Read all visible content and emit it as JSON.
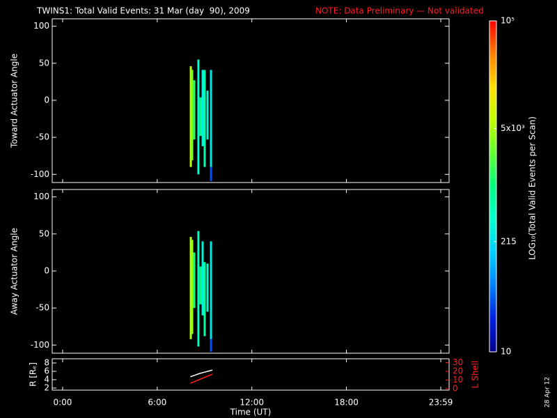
{
  "header": {
    "title": "TWINS1: Total Valid Events: 31 Mar (day  90), 2009",
    "note": "NOTE: Data Preliminary — Not validated",
    "stamp": "28 Apr 12"
  },
  "time_axis": {
    "label": "Time (UT)",
    "xlim": [
      -0.66,
      24.51
    ],
    "xticks": [
      {
        "value": 0,
        "label": "0:00"
      },
      {
        "value": 6,
        "label": "6:00"
      },
      {
        "value": 12,
        "label": "12:00"
      },
      {
        "value": 18,
        "label": "18:00"
      },
      {
        "value": 23.983,
        "label": "23:59"
      }
    ]
  },
  "colorbar": {
    "label": "LOG₁₀(Total Valid Events per Scan)",
    "log": true,
    "lim": [
      10,
      100000
    ],
    "ticks": [
      10,
      215,
      {
        "value": 5000,
        "label": "5x10³"
      },
      {
        "value": 100000,
        "label": "10⁵"
      }
    ],
    "colormap": [
      "#00008c",
      "#0020e0",
      "#0080ff",
      "#00d0ff",
      "#00ffd0",
      "#00ff80",
      "#60ff30",
      "#c0ff00",
      "#ffe000",
      "#ff8000",
      "#ff0000"
    ]
  },
  "chart_data": [
    {
      "type": "heatmap",
      "ylabel": "Toward Actuator Angle",
      "ylim": [
        -111,
        110
      ],
      "yticks": [
        -100,
        -50,
        0,
        50,
        100
      ],
      "streaks": [
        {
          "x": 8.13,
          "y": [
            -90,
            46
          ],
          "value": 6000
        },
        {
          "x": 8.22,
          "y": [
            -81,
            41
          ],
          "value": 3000
        },
        {
          "x": 8.35,
          "y": [
            -53,
            27
          ],
          "value": 1500
        },
        {
          "x": 8.61,
          "y": [
            -100,
            55
          ],
          "value": 400
        },
        {
          "x": 8.75,
          "y": [
            -48,
            4
          ],
          "value": 800
        },
        {
          "x": 8.88,
          "y": [
            -62,
            41
          ],
          "value": 300
        },
        {
          "x": 9.01,
          "y": [
            -90,
            41
          ],
          "value": 600
        },
        {
          "x": 9.19,
          "y": [
            -53,
            13
          ],
          "value": 350
        },
        {
          "x": 9.41,
          "y": [
            -90,
            41
          ],
          "value": 250
        },
        {
          "x": 9.41,
          "y": [
            -109,
            -90
          ],
          "value": 40
        }
      ]
    },
    {
      "type": "heatmap",
      "ylabel": "Away Actuator Angle",
      "ylim": [
        -111,
        110
      ],
      "yticks": [
        -100,
        -50,
        0,
        50,
        100
      ],
      "streaks": [
        {
          "x": 8.13,
          "y": [
            -92,
            46
          ],
          "value": 5500
        },
        {
          "x": 8.22,
          "y": [
            -85,
            42
          ],
          "value": 4000
        },
        {
          "x": 8.35,
          "y": [
            -50,
            25
          ],
          "value": 1200
        },
        {
          "x": 8.61,
          "y": [
            -102,
            54
          ],
          "value": 450
        },
        {
          "x": 8.75,
          "y": [
            -45,
            6
          ],
          "value": 900
        },
        {
          "x": 8.88,
          "y": [
            -60,
            40
          ],
          "value": 320
        },
        {
          "x": 9.01,
          "y": [
            -88,
            12
          ],
          "value": 700
        },
        {
          "x": 9.19,
          "y": [
            -55,
            10
          ],
          "value": 380
        },
        {
          "x": 9.41,
          "y": [
            -92,
            40
          ],
          "value": 260
        },
        {
          "x": 9.41,
          "y": [
            -109,
            -92
          ],
          "value": 40
        }
      ]
    },
    {
      "type": "line",
      "ylabel": "R [Rₑ]",
      "y2label": "L Shell",
      "ylim": [
        1.5,
        9
      ],
      "yticks": [
        2,
        4,
        6,
        8
      ],
      "y2lim": [
        -1.6,
        34.4
      ],
      "y2ticks": [
        0,
        10,
        20,
        30
      ],
      "x": [
        8.1,
        8.4,
        8.7,
        9.0,
        9.3,
        9.5
      ],
      "series": [
        {
          "name": "R",
          "color": "#ffffff",
          "values": [
            4.7,
            5.1,
            5.5,
            5.8,
            6.1,
            6.3
          ]
        },
        {
          "name": "L Shell",
          "color": "#ff2020",
          "axis": "y2",
          "values": [
            6.4,
            8.5,
            10.8,
            13,
            15.2,
            16.8
          ]
        }
      ]
    }
  ]
}
